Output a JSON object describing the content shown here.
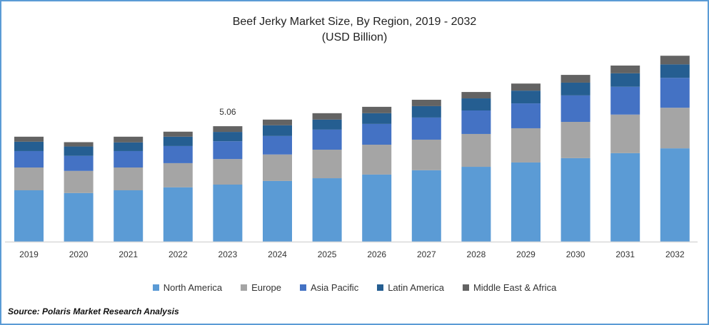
{
  "chart_data": {
    "type": "bar",
    "stacked": true,
    "title": "Beef Jerky Market Size, By Region, 2019 - 2032",
    "subtitle": "(USD Billion)",
    "xlabel": "",
    "ylabel": "",
    "ylim": [
      0,
      8.5
    ],
    "grid": false,
    "legend_position": "bottom",
    "categories": [
      "2019",
      "2020",
      "2021",
      "2022",
      "2023",
      "2024",
      "2025",
      "2026",
      "2027",
      "2028",
      "2029",
      "2030",
      "2031",
      "2032"
    ],
    "series": [
      {
        "name": "North America",
        "color": "#5b9bd5",
        "values": [
          2.25,
          2.13,
          2.25,
          2.38,
          2.5,
          2.66,
          2.78,
          2.94,
          3.13,
          3.28,
          3.47,
          3.66,
          3.88,
          4.09
        ]
      },
      {
        "name": "Europe",
        "color": "#a5a5a5",
        "values": [
          1.0,
          0.97,
          1.0,
          1.06,
          1.12,
          1.16,
          1.25,
          1.31,
          1.34,
          1.44,
          1.5,
          1.59,
          1.69,
          1.78
        ]
      },
      {
        "name": "Asia Pacific",
        "color": "#4472c4",
        "values": [
          0.72,
          0.66,
          0.72,
          0.75,
          0.78,
          0.81,
          0.88,
          0.91,
          0.97,
          1.03,
          1.09,
          1.16,
          1.22,
          1.31
        ]
      },
      {
        "name": "Latin America",
        "color": "#255e91",
        "values": [
          0.41,
          0.41,
          0.38,
          0.41,
          0.41,
          0.47,
          0.44,
          0.47,
          0.5,
          0.53,
          0.56,
          0.56,
          0.59,
          0.59
        ]
      },
      {
        "name": "Middle East & Africa",
        "color": "#636363",
        "values": [
          0.22,
          0.19,
          0.25,
          0.22,
          0.25,
          0.25,
          0.28,
          0.28,
          0.28,
          0.28,
          0.31,
          0.34,
          0.34,
          0.38
        ]
      }
    ],
    "annotations": [
      {
        "category": "2023",
        "text": "5.06"
      }
    ]
  },
  "source": "Source: Polaris Market Research Analysis"
}
